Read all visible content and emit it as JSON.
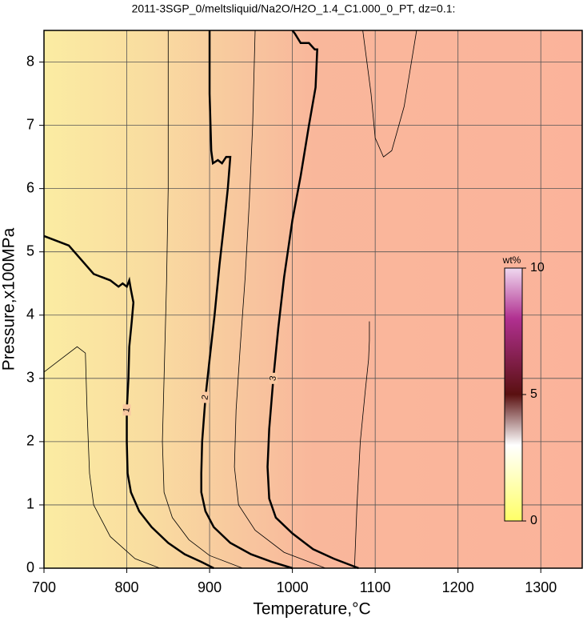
{
  "chart_data": {
    "type": "contour",
    "title": "2011-3SGP_0/meltsliquid/Na2O/H2O_1.4_C1.000_0_PT, dz=0.1:",
    "x_label": "Temperature,°C",
    "y_label": "Pressure,x100MPa",
    "xlim": [
      700,
      1350
    ],
    "xticks": [
      700,
      800,
      900,
      1000,
      1100,
      1200,
      1300
    ],
    "ylim": [
      0,
      8.5
    ],
    "yticks": [
      0,
      1,
      2,
      3,
      4,
      5,
      6,
      7,
      8
    ],
    "grid": true,
    "contours": [
      {
        "level": 1,
        "major": true,
        "x": [
          700,
          730,
          760,
          780,
          790,
          795,
          800,
          803,
          805,
          808,
          806,
          803,
          802,
          800,
          800,
          801,
          805,
          815,
          830,
          850,
          870,
          890,
          905
        ],
        "y": [
          5.25,
          5.1,
          4.65,
          4.55,
          4.45,
          4.5,
          4.45,
          4.55,
          4.4,
          4.2,
          3.9,
          3.5,
          3.0,
          2.5,
          2.0,
          1.5,
          1.2,
          0.9,
          0.65,
          0.4,
          0.22,
          0.1,
          0
        ]
      },
      {
        "level": 2,
        "major": true,
        "x": [
          900,
          900,
          902,
          904,
          910,
          915,
          920,
          925,
          922,
          918,
          912,
          906,
          900,
          895,
          891,
          890,
          890,
          895,
          905,
          925,
          950,
          975,
          1000
        ],
        "y": [
          8.5,
          7.5,
          6.6,
          6.4,
          6.45,
          6.4,
          6.5,
          6.5,
          6.0,
          5.5,
          4.8,
          4.0,
          3.3,
          2.7,
          2.0,
          1.5,
          1.2,
          0.9,
          0.65,
          0.4,
          0.22,
          0.1,
          0
        ]
      },
      {
        "level": 3,
        "major": true,
        "x": [
          1000,
          1003,
          1010,
          1020,
          1027,
          1030,
          1028,
          1020,
          1010,
          1000,
          990,
          983,
          977,
          972,
          970,
          972,
          980,
          1000,
          1025,
          1050,
          1080
        ],
        "y": [
          8.5,
          8.45,
          8.3,
          8.3,
          8.2,
          8.2,
          7.6,
          7.0,
          6.2,
          5.5,
          4.6,
          3.8,
          3.0,
          2.2,
          1.6,
          1.1,
          0.8,
          0.55,
          0.3,
          0.15,
          0
        ]
      },
      {
        "level": 0.5,
        "major": false,
        "x": [
          700,
          720,
          740,
          750,
          752,
          755,
          760,
          780,
          810,
          840
        ],
        "y": [
          3.1,
          3.3,
          3.5,
          3.4,
          2.5,
          1.5,
          1.0,
          0.5,
          0.15,
          0
        ]
      },
      {
        "level": 1.5,
        "major": false,
        "x": [
          850,
          850,
          848,
          845,
          843,
          845,
          855,
          875,
          900,
          940
        ],
        "y": [
          8.5,
          6.0,
          4.5,
          3.0,
          2.0,
          1.2,
          0.8,
          0.45,
          0.2,
          0
        ]
      },
      {
        "level": 2.5,
        "major": false,
        "x": [
          955,
          952,
          948,
          943,
          937,
          932,
          930,
          935,
          955,
          990,
          1040
        ],
        "y": [
          8.5,
          7.0,
          5.8,
          4.6,
          3.5,
          2.5,
          1.6,
          1.0,
          0.6,
          0.25,
          0
        ]
      },
      {
        "level": 3.2,
        "major": false,
        "x": [
          1085,
          1095,
          1100,
          1110,
          1120,
          1135,
          1150
        ],
        "y": [
          8.5,
          7.5,
          6.8,
          6.5,
          6.6,
          7.3,
          8.5
        ]
      },
      {
        "level": 3.3,
        "major": false,
        "x": [
          1075,
          1078,
          1082,
          1088,
          1092,
          1093,
          1093
        ],
        "y": [
          0,
          1.0,
          2.0,
          2.8,
          3.3,
          3.6,
          3.9
        ]
      }
    ],
    "colorbar": {
      "label": "wt%",
      "clim": [
        0,
        10
      ],
      "ticks": [
        0,
        5,
        10
      ]
    }
  }
}
